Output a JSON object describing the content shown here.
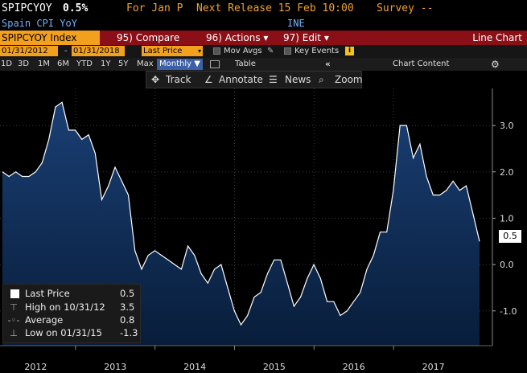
{
  "header": {
    "ticker": "SPIPCYOY",
    "value": "0.5%",
    "period": "For Jan P",
    "next_release": "Next Release 15 Feb 10:00",
    "survey": "Survey --"
  },
  "description": {
    "name": "Spain CPI YoY",
    "source": "INE"
  },
  "function_bar": {
    "security": "SPIPCYOY Index",
    "compare": "95) Compare",
    "actions": "96) Actions ▾",
    "edit": "97) Edit ▾",
    "chart_type": "Line Chart"
  },
  "date_bar": {
    "start": "01/31/2012",
    "dash": "-",
    "end": "01/31/2018",
    "field": "Last Price",
    "mov_avgs": "Mov Avgs",
    "key_events": "Key Events",
    "info": "i"
  },
  "period_bar": {
    "periods": [
      "1D",
      "3D",
      "1M",
      "6M",
      "YTD",
      "1Y",
      "5Y",
      "Max"
    ],
    "frequency": "Monthly ▼",
    "table": "Table",
    "collapse": "«",
    "chart_content": "Chart Content",
    "settings_icon": "gear-icon"
  },
  "tools": {
    "track": "Track",
    "annotate": "Annotate",
    "news": "News",
    "zoom": "Zoom"
  },
  "legend": {
    "items": [
      {
        "label": "Last Price",
        "value": "0.5"
      },
      {
        "label": "High on 10/31/12",
        "value": "3.5"
      },
      {
        "label": "Average",
        "value": "0.8"
      },
      {
        "label": "Low on 01/31/15",
        "value": "-1.3"
      }
    ]
  },
  "colors": {
    "accent_orange": "#f3a01e",
    "function_bar_red": "#8b0f17",
    "area_top": "#1a3f74",
    "area_bottom": "#081d3a",
    "line": "#ffffff"
  },
  "chart_data": {
    "type": "area",
    "series_label": "Last Price",
    "x_start": "2012-01",
    "x_end": "2018-01",
    "frequency": "Monthly",
    "values": [
      2.0,
      1.9,
      2.0,
      1.9,
      1.9,
      2.0,
      2.2,
      2.7,
      3.4,
      3.5,
      2.9,
      2.9,
      2.7,
      2.8,
      2.4,
      1.4,
      1.7,
      2.1,
      1.8,
      1.5,
      0.3,
      -0.1,
      0.2,
      0.3,
      0.2,
      0.1,
      0.0,
      -0.1,
      0.4,
      0.2,
      -0.2,
      -0.4,
      -0.1,
      0.0,
      -0.5,
      -1.0,
      -1.3,
      -1.1,
      -0.7,
      -0.6,
      -0.2,
      0.1,
      0.1,
      -0.4,
      -0.9,
      -0.7,
      -0.3,
      0.0,
      -0.3,
      -0.8,
      -0.8,
      -1.1,
      -1.0,
      -0.8,
      -0.6,
      -0.1,
      0.2,
      0.7,
      0.7,
      1.6,
      3.0,
      3.0,
      2.3,
      2.6,
      1.9,
      1.5,
      1.5,
      1.6,
      1.8,
      1.6,
      1.7,
      1.1,
      0.5
    ],
    "x_tick_labels": [
      "2012",
      "2013",
      "2014",
      "2015",
      "2016",
      "2017"
    ],
    "y_ticks": [
      3.0,
      2.0,
      1.0,
      0.0,
      -1.0
    ],
    "y_tick_labels": [
      "3.0",
      "2.0",
      "1.0",
      "0.0",
      "-1.0"
    ],
    "ylim": [
      -1.75,
      3.8
    ],
    "last_value_label": "0.5",
    "grid": true
  }
}
